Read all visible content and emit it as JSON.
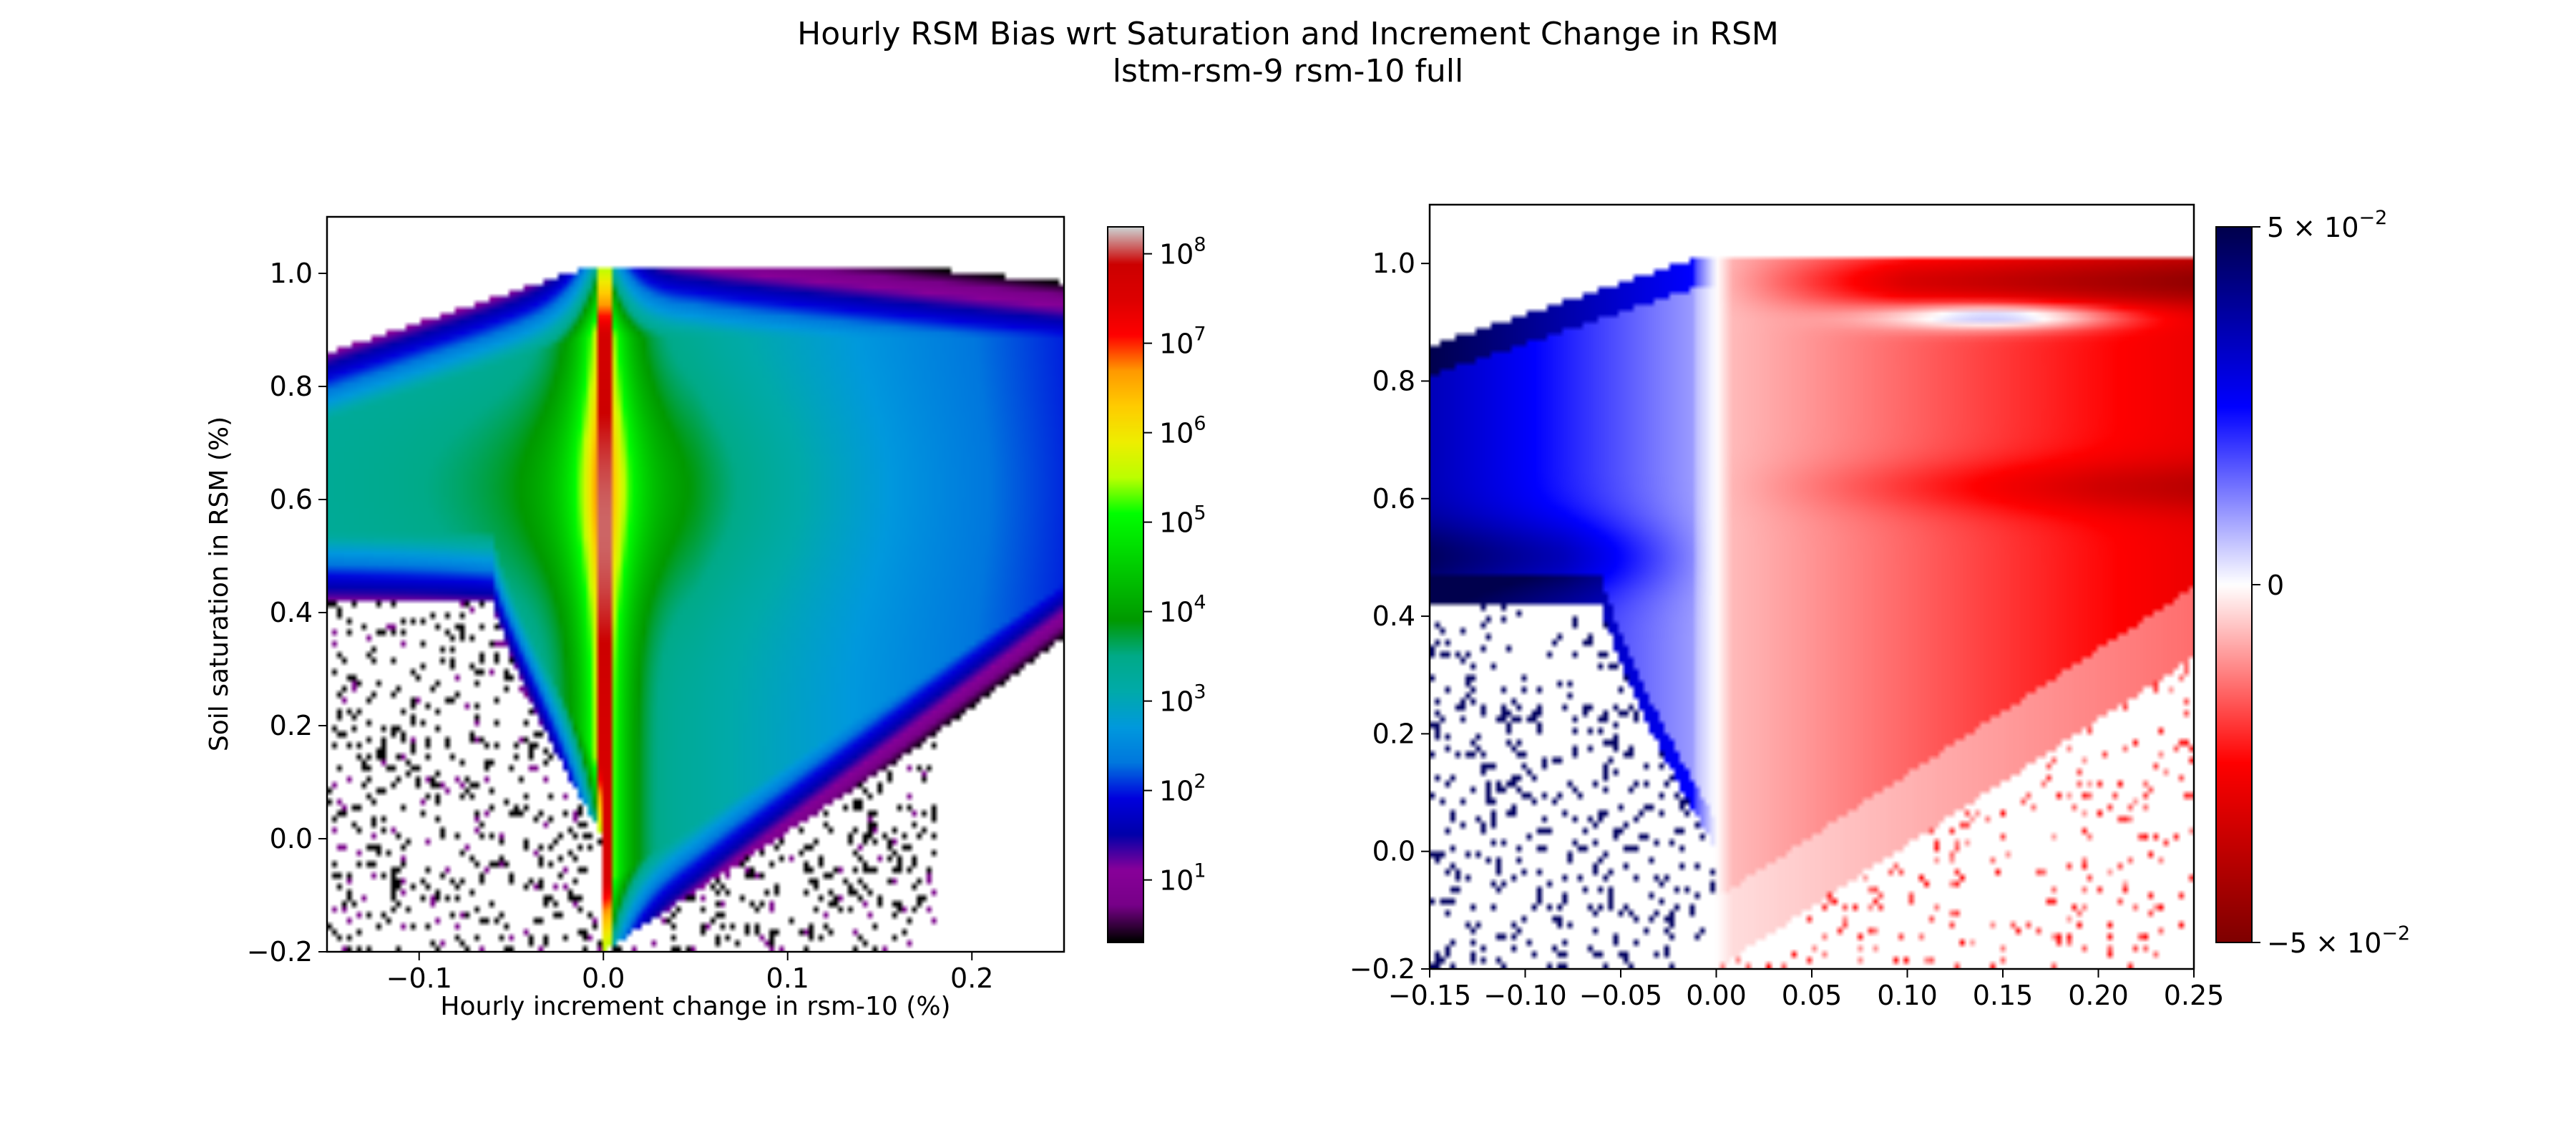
{
  "figure": {
    "title_line1": "Hourly RSM Bias wrt Saturation and Increment Change in RSM",
    "title_line2": "lstm-rsm-9 rsm-10 full"
  },
  "chart_data": [
    {
      "type": "heatmap",
      "panel": "left",
      "xlabel": "Hourly increment change in rsm-10 (%)",
      "ylabel": "Soil saturation in RSM (%)",
      "xlim": [
        -0.15,
        0.25
      ],
      "ylim": [
        -0.2,
        1.1
      ],
      "xticks": [
        -0.1,
        0.0,
        0.1,
        0.2
      ],
      "xtick_labels": [
        "−0.1",
        "0.0",
        "0.1",
        "0.2"
      ],
      "yticks": [
        -0.2,
        0.0,
        0.2,
        0.4,
        0.6,
        0.8,
        1.0
      ],
      "ytick_labels": [
        "−0.2",
        "0.0",
        "0.2",
        "0.4",
        "0.6",
        "0.8",
        "1.0"
      ],
      "colorbar": {
        "scale": "log",
        "colormap": "nipy_spectral",
        "range": [
          2,
          200000000
        ],
        "ticks": [
          10,
          100,
          1000,
          10000,
          100000,
          1000000,
          10000000,
          100000000
        ],
        "tick_mantissa": [
          "10",
          "10",
          "10",
          "10",
          "10",
          "10",
          "10",
          "10"
        ],
        "tick_exponents": [
          "1",
          "2",
          "3",
          "4",
          "5",
          "6",
          "7",
          "8"
        ]
      },
      "grid": false
    },
    {
      "type": "heatmap",
      "panel": "right",
      "xlabel": "",
      "ylabel": "",
      "xlim": [
        -0.15,
        0.25
      ],
      "ylim": [
        -0.2,
        1.1
      ],
      "xticks": [
        -0.15,
        -0.1,
        -0.05,
        0.0,
        0.05,
        0.1,
        0.15,
        0.2,
        0.25
      ],
      "xtick_labels": [
        "−0.15",
        "−0.10",
        "−0.05",
        "0.00",
        "0.05",
        "0.10",
        "0.15",
        "0.20",
        "0.25"
      ],
      "yticks": [
        -0.2,
        0.0,
        0.2,
        0.4,
        0.6,
        0.8,
        1.0
      ],
      "ytick_labels": [
        "−0.2",
        "0.0",
        "0.2",
        "0.4",
        "0.6",
        "0.8",
        "1.0"
      ],
      "colorbar": {
        "scale": "symmetric",
        "colormap": "seismic_r",
        "range": [
          -0.05,
          0.05
        ],
        "ticks": [
          0.05,
          0,
          -0.05
        ],
        "tick_labels": [
          "5 × 10",
          "0",
          "−5 × 10"
        ],
        "tick_exponents": [
          "−2",
          "",
          "−2"
        ]
      },
      "grid": false
    }
  ]
}
